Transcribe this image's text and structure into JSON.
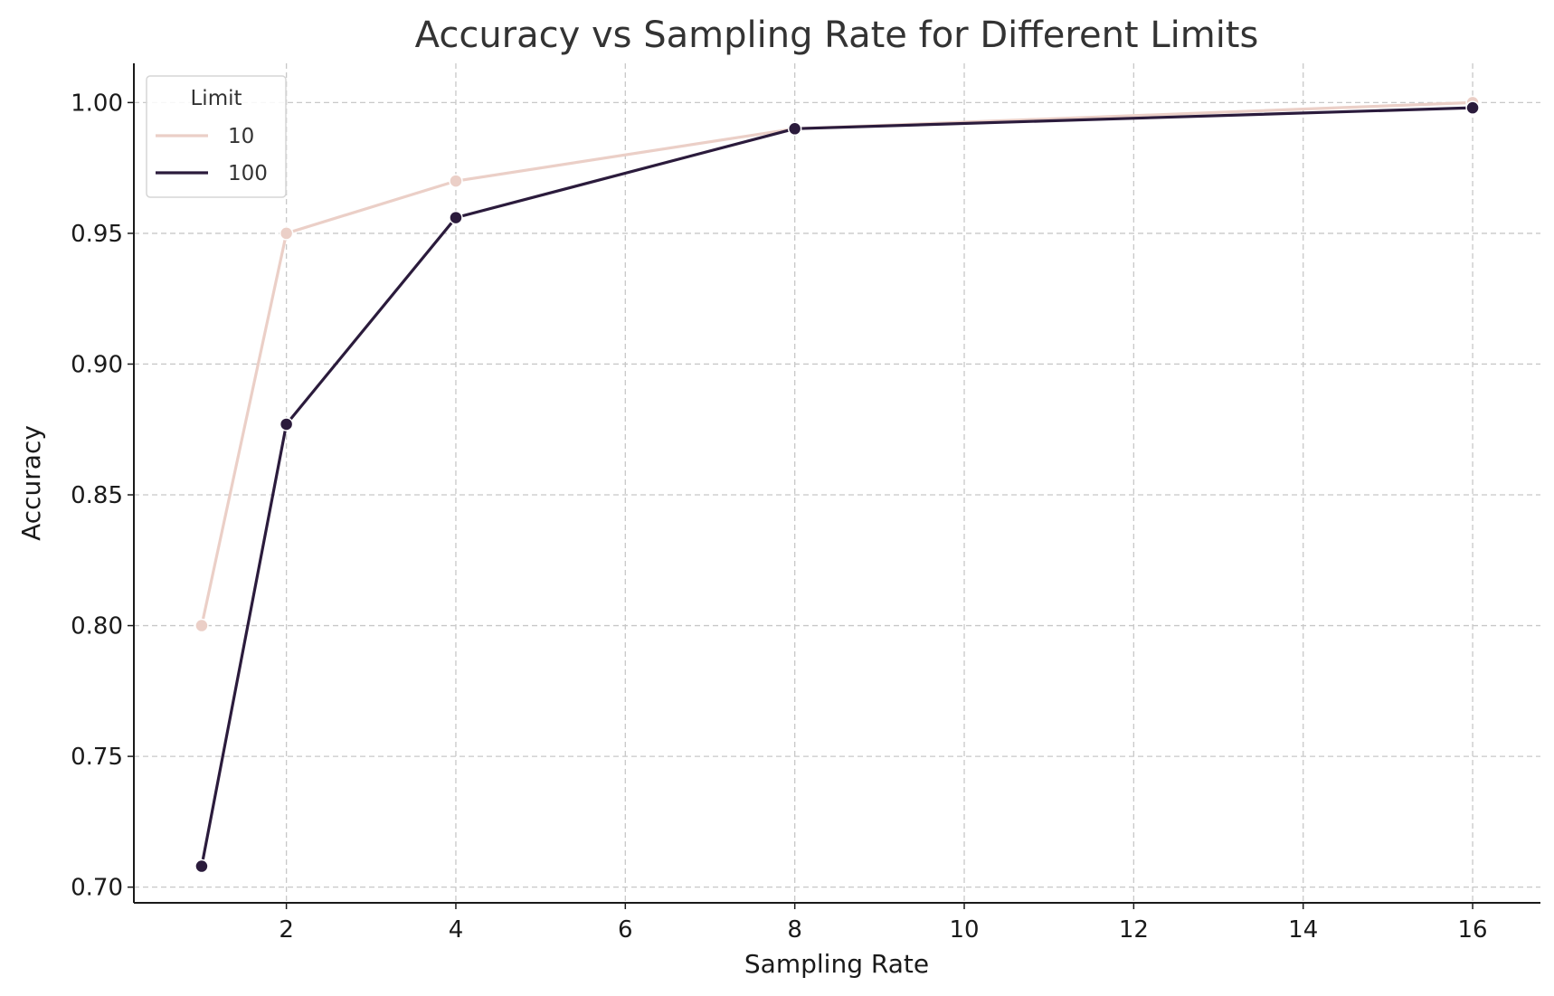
{
  "chart_data": {
    "type": "line",
    "title": "Accuracy vs Sampling Rate for Different Limits",
    "xlabel": "Sampling Rate",
    "ylabel": "Accuracy",
    "xlim": [
      0.2,
      16.8
    ],
    "ylim": [
      0.694,
      1.015
    ],
    "xticks": [
      2,
      4,
      6,
      8,
      10,
      12,
      14,
      16
    ],
    "xtick_labels": [
      "2",
      "4",
      "6",
      "8",
      "10",
      "12",
      "14",
      "16"
    ],
    "yticks": [
      0.7,
      0.75,
      0.8,
      0.85,
      0.9,
      0.95,
      1.0
    ],
    "ytick_labels": [
      "0.70",
      "0.75",
      "0.80",
      "0.85",
      "0.90",
      "0.95",
      "1.00"
    ],
    "grid": true,
    "legend": {
      "title": "Limit",
      "placement": "top-left"
    },
    "x": [
      1,
      2,
      4,
      8,
      16
    ],
    "series": [
      {
        "name": "10",
        "color": "#ebcfc7",
        "values": [
          0.8,
          0.95,
          0.97,
          0.99,
          1.0
        ]
      },
      {
        "name": "100",
        "color": "#2b1b3c",
        "values": [
          0.708,
          0.877,
          0.956,
          0.99,
          0.998
        ]
      }
    ]
  }
}
